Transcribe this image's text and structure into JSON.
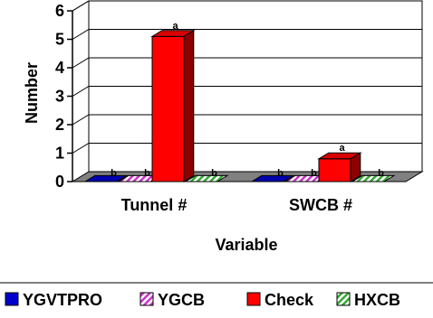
{
  "chart_data": {
    "type": "bar",
    "categories": [
      "Tunnel #",
      "SWCB #"
    ],
    "xlabel": "Variable",
    "ylabel": "Number",
    "ylim": [
      0,
      6
    ],
    "yticks": [
      0,
      1,
      2,
      3,
      4,
      5,
      6
    ],
    "grid": true,
    "legend_position": "bottom",
    "series": [
      {
        "name": "YGVTPRO",
        "values": [
          0,
          0
        ],
        "labels": [
          "b",
          "b"
        ],
        "color": "#0000cc",
        "pattern": "solid"
      },
      {
        "name": "YGCB",
        "values": [
          0,
          0
        ],
        "labels": [
          "b",
          "b"
        ],
        "color": "#cc33cc",
        "pattern": "diagonal-stripes"
      },
      {
        "name": "Check",
        "values": [
          5.1,
          0.8
        ],
        "labels": [
          "a",
          "a"
        ],
        "color": "#ff0000",
        "pattern": "solid"
      },
      {
        "name": "HXCB",
        "values": [
          0,
          0
        ],
        "labels": [
          "b",
          "b"
        ],
        "color": "#33aa33",
        "pattern": "diagonal-stripes"
      }
    ]
  }
}
